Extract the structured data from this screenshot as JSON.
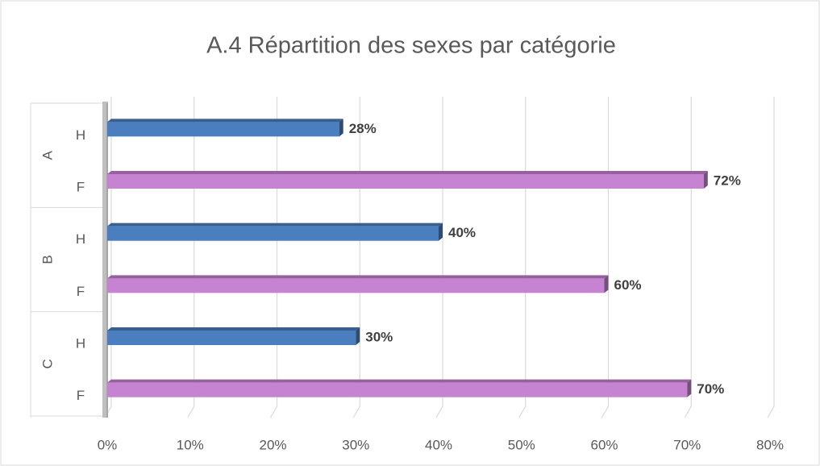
{
  "chart_data": {
    "type": "bar",
    "orientation": "horizontal",
    "title": "A.4 Répartition des sexes par catégorie",
    "categories": [
      "A",
      "B",
      "C"
    ],
    "series": [
      {
        "name": "H",
        "color": "#4a7ebf",
        "values": [
          28,
          40,
          30
        ],
        "value_labels": [
          "28%",
          "40%",
          "30%"
        ]
      },
      {
        "name": "F",
        "color": "#c683d2",
        "values": [
          72,
          60,
          70
        ],
        "value_labels": [
          "72%",
          "60%",
          "70%"
        ]
      }
    ],
    "xlim": [
      0,
      80
    ],
    "xticks": [
      {
        "value": 0,
        "label": "0%"
      },
      {
        "value": 10,
        "label": "10%"
      },
      {
        "value": 20,
        "label": "20%"
      },
      {
        "value": 30,
        "label": "30%"
      },
      {
        "value": 40,
        "label": "40%"
      },
      {
        "value": 50,
        "label": "50%"
      },
      {
        "value": 60,
        "label": "60%"
      },
      {
        "value": 70,
        "label": "70%"
      },
      {
        "value": 80,
        "label": "80%"
      }
    ],
    "grid": true
  }
}
